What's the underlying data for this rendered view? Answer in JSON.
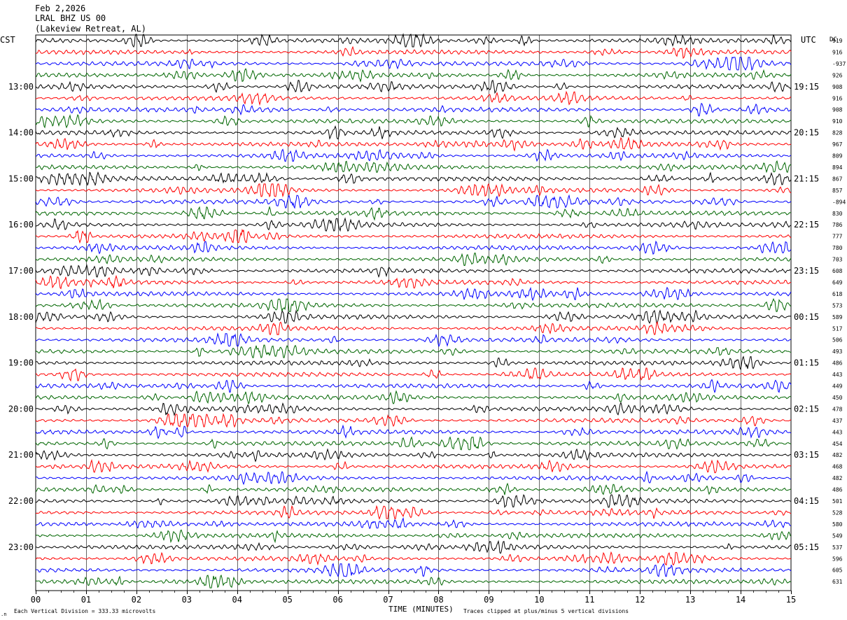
{
  "header": {
    "date": "Feb 2,2026",
    "channel": "LRAL BHZ US 00",
    "location": "(Lakeview Retreat, AL)"
  },
  "left_timezone": "CST",
  "right_timezone": "UTC",
  "dc_header": "DC",
  "footer": {
    "vertical_division": "Each Vertical Division =  333.33 microvolts",
    "xlabel": "TIME (MINUTES)",
    "clip_note": "Traces clipped at plus/minus 5 vertical divisions"
  },
  "colors": {
    "trace_cycle": [
      "#000000",
      "#ff0000",
      "#0000ff",
      "#006600"
    ],
    "grid": "#000000",
    "background": "#ffffff"
  },
  "chart_data": {
    "type": "line",
    "title": "",
    "xlabel": "TIME (MINUTES)",
    "ylabel": "",
    "xlim": [
      0,
      15
    ],
    "x_ticks": [
      "00",
      "01",
      "02",
      "03",
      "04",
      "05",
      "06",
      "07",
      "08",
      "09",
      "10",
      "11",
      "12",
      "13",
      "14",
      "15"
    ],
    "trace_count": 48,
    "traces_per_hour": 4,
    "left_hour_labels": [
      "13:00",
      "14:00",
      "15:00",
      "16:00",
      "17:00",
      "18:00",
      "19:00",
      "20:00",
      "21:00",
      "22:00",
      "23:00"
    ],
    "right_hour_labels": [
      "19:15",
      "20:15",
      "21:15",
      "22:15",
      "23:15",
      "00:15",
      "01:15",
      "02:15",
      "03:15",
      "04:15",
      "05:15"
    ],
    "dc_offsets": [
      "919",
      "916",
      "-937",
      "926",
      "908",
      "916",
      "908",
      "910",
      "828",
      "967",
      "809",
      "894",
      "867",
      "857",
      "-894",
      "830",
      "786",
      "777",
      "780",
      "703",
      "608",
      "649",
      "618",
      "573",
      "589",
      "517",
      "506",
      "493",
      "486",
      "443",
      "449",
      "450",
      "478",
      "437",
      "443",
      "454",
      "482",
      "468",
      "482",
      "486",
      "501",
      "528",
      "580",
      "549",
      "537",
      "596",
      "605",
      "631"
    ]
  }
}
